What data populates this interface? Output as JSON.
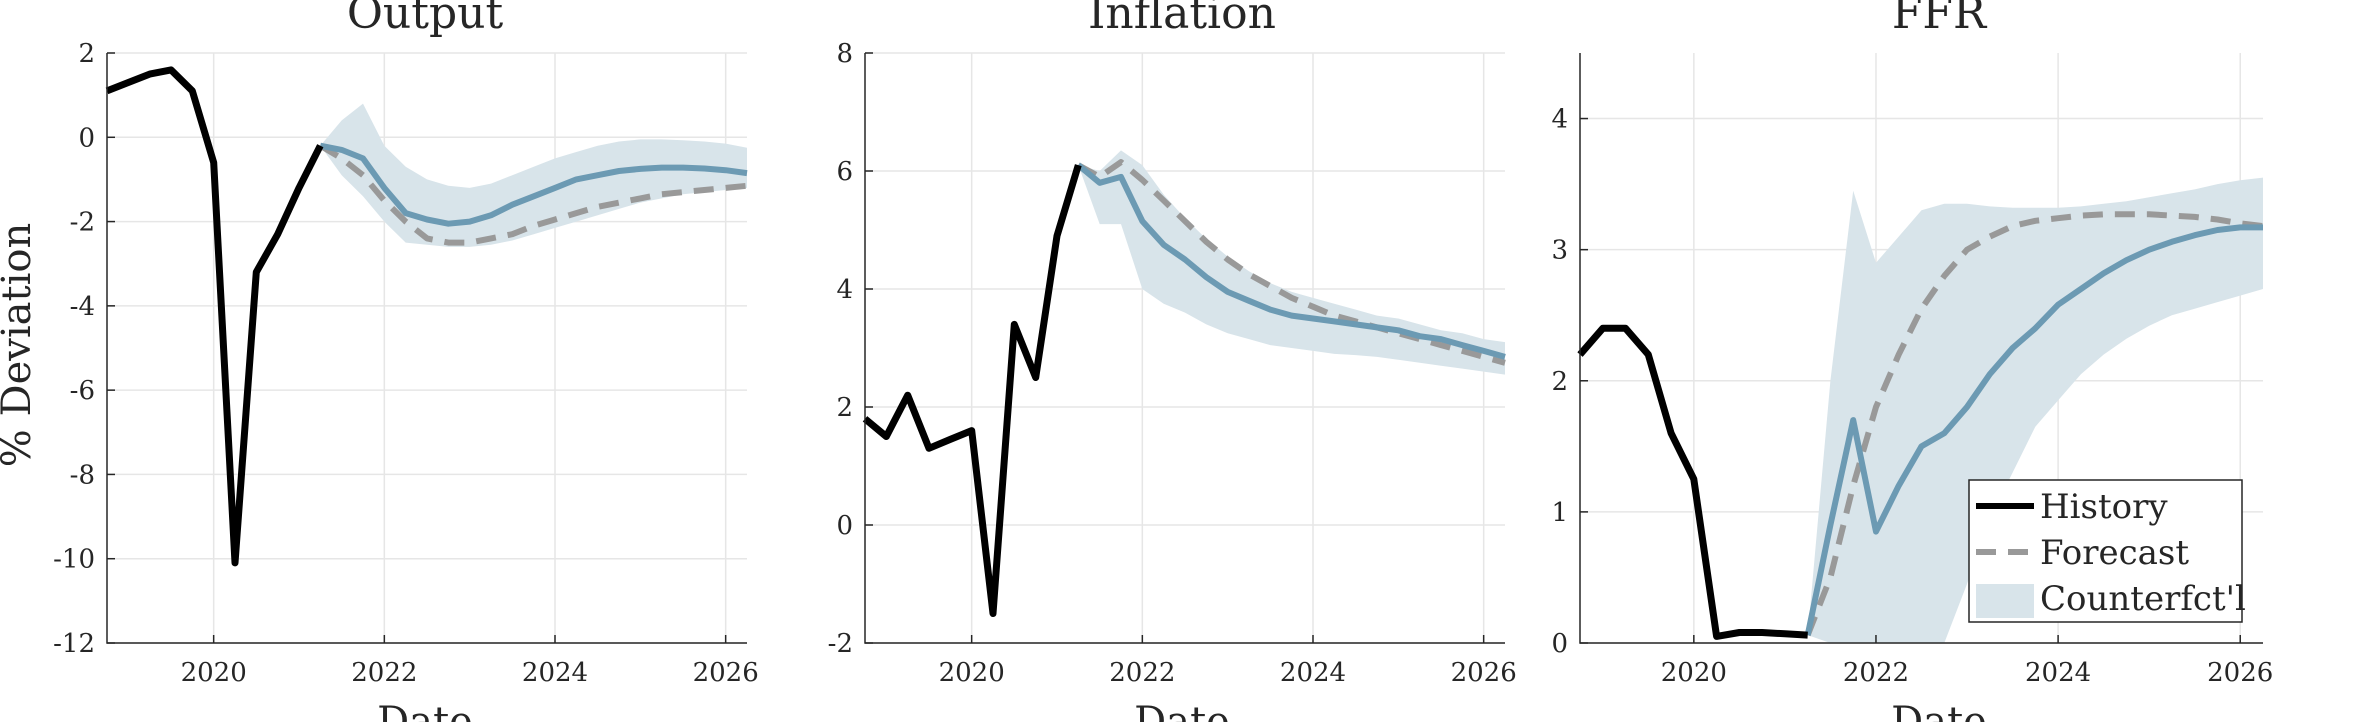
{
  "colors": {
    "history": "#000000",
    "forecast": "#999999",
    "counterfactual_line": "#6c9ab3",
    "counterfactual_band": "#d8e4ea"
  },
  "legend": {
    "history": "History",
    "forecast": "Forecast",
    "counterfactual": "Counterfct'l"
  },
  "chart_data": [
    {
      "type": "line",
      "title": "Output",
      "xlabel": "Date",
      "ylabel": "% Deviation",
      "xlim": [
        2018.75,
        2026.25
      ],
      "ylim": [
        -12,
        2
      ],
      "xticks": [
        2020,
        2022,
        2024,
        2026
      ],
      "yticks": [
        -12,
        -10,
        -8,
        -6,
        -4,
        -2,
        0,
        2
      ],
      "grid": true,
      "legend_position": "none",
      "history": {
        "x": [
          2018.75,
          2019.0,
          2019.25,
          2019.5,
          2019.75,
          2020.0,
          2020.25,
          2020.5,
          2020.75,
          2021.0,
          2021.25
        ],
        "y": [
          1.1,
          1.3,
          1.5,
          1.6,
          1.1,
          -0.6,
          -10.1,
          -3.2,
          -2.3,
          -1.2,
          -0.2
        ]
      },
      "forecast": {
        "x": [
          2021.25,
          2021.5,
          2021.75,
          2022.0,
          2022.25,
          2022.5,
          2022.75,
          2023.0,
          2023.25,
          2023.5,
          2023.75,
          2024.0,
          2024.25,
          2024.5,
          2024.75,
          2025.0,
          2025.25,
          2025.5,
          2025.75,
          2026.0,
          2026.25
        ],
        "y": [
          -0.2,
          -0.5,
          -0.9,
          -1.5,
          -2.0,
          -2.4,
          -2.5,
          -2.5,
          -2.4,
          -2.3,
          -2.1,
          -1.95,
          -1.8,
          -1.65,
          -1.55,
          -1.45,
          -1.35,
          -1.3,
          -1.25,
          -1.2,
          -1.15
        ]
      },
      "counterfactual": {
        "x": [
          2021.25,
          2021.5,
          2021.75,
          2022.0,
          2022.25,
          2022.5,
          2022.75,
          2023.0,
          2023.25,
          2023.5,
          2023.75,
          2024.0,
          2024.25,
          2024.5,
          2024.75,
          2025.0,
          2025.25,
          2025.5,
          2025.75,
          2026.0,
          2026.25
        ],
        "y": [
          -0.2,
          -0.3,
          -0.5,
          -1.2,
          -1.8,
          -1.95,
          -2.05,
          -2.0,
          -1.85,
          -1.6,
          -1.4,
          -1.2,
          -1.0,
          -0.9,
          -0.8,
          -0.75,
          -0.72,
          -0.72,
          -0.74,
          -0.78,
          -0.85
        ],
        "lower": [
          -0.2,
          -0.9,
          -1.4,
          -2.0,
          -2.5,
          -2.55,
          -2.6,
          -2.6,
          -2.55,
          -2.45,
          -2.3,
          -2.15,
          -2.0,
          -1.85,
          -1.7,
          -1.55,
          -1.45,
          -1.35,
          -1.3,
          -1.25,
          -1.2
        ],
        "upper": [
          -0.2,
          0.4,
          0.8,
          -0.2,
          -0.7,
          -1.0,
          -1.15,
          -1.2,
          -1.1,
          -0.9,
          -0.7,
          -0.5,
          -0.35,
          -0.2,
          -0.1,
          -0.05,
          -0.05,
          -0.07,
          -0.1,
          -0.15,
          -0.25
        ]
      }
    },
    {
      "type": "line",
      "title": "Inflation",
      "xlabel": "Date",
      "ylabel": "",
      "xlim": [
        2018.75,
        2026.25
      ],
      "ylim": [
        -2,
        8
      ],
      "xticks": [
        2020,
        2022,
        2024,
        2026
      ],
      "yticks": [
        -2,
        0,
        2,
        4,
        6,
        8
      ],
      "grid": true,
      "legend_position": "none",
      "history": {
        "x": [
          2018.75,
          2019.0,
          2019.25,
          2019.5,
          2019.75,
          2020.0,
          2020.25,
          2020.5,
          2020.75,
          2021.0,
          2021.25
        ],
        "y": [
          1.8,
          1.5,
          2.2,
          1.3,
          1.45,
          1.6,
          -1.5,
          3.4,
          2.5,
          4.9,
          6.1
        ]
      },
      "forecast": {
        "x": [
          2021.25,
          2021.5,
          2021.75,
          2022.0,
          2022.25,
          2022.5,
          2022.75,
          2023.0,
          2023.25,
          2023.5,
          2023.75,
          2024.0,
          2024.25,
          2024.5,
          2024.75,
          2025.0,
          2025.25,
          2025.5,
          2025.75,
          2026.0,
          2026.25
        ],
        "y": [
          6.1,
          5.9,
          6.15,
          5.85,
          5.5,
          5.15,
          4.8,
          4.5,
          4.25,
          4.05,
          3.85,
          3.7,
          3.55,
          3.45,
          3.35,
          3.25,
          3.15,
          3.05,
          2.95,
          2.85,
          2.75
        ]
      },
      "counterfactual": {
        "x": [
          2021.25,
          2021.5,
          2021.75,
          2022.0,
          2022.25,
          2022.5,
          2022.75,
          2023.0,
          2023.25,
          2023.5,
          2023.75,
          2024.0,
          2024.25,
          2024.5,
          2024.75,
          2025.0,
          2025.25,
          2025.5,
          2025.75,
          2026.0,
          2026.25
        ],
        "y": [
          6.1,
          5.8,
          5.9,
          5.15,
          4.75,
          4.5,
          4.2,
          3.95,
          3.8,
          3.65,
          3.55,
          3.5,
          3.45,
          3.4,
          3.35,
          3.3,
          3.2,
          3.15,
          3.05,
          2.95,
          2.85
        ],
        "lower": [
          6.1,
          5.1,
          5.1,
          4.0,
          3.75,
          3.6,
          3.4,
          3.25,
          3.15,
          3.05,
          3.0,
          2.95,
          2.9,
          2.88,
          2.85,
          2.8,
          2.75,
          2.7,
          2.65,
          2.6,
          2.55
        ],
        "upper": [
          6.1,
          6.0,
          6.35,
          6.1,
          5.6,
          5.2,
          4.85,
          4.55,
          4.3,
          4.1,
          3.95,
          3.85,
          3.75,
          3.65,
          3.55,
          3.5,
          3.4,
          3.3,
          3.25,
          3.15,
          3.1
        ]
      }
    },
    {
      "type": "line",
      "title": "FFR",
      "xlabel": "Date",
      "ylabel": "",
      "xlim": [
        2018.75,
        2026.25
      ],
      "ylim": [
        0,
        4.5
      ],
      "xticks": [
        2020,
        2022,
        2024,
        2026
      ],
      "yticks": [
        0,
        1,
        2,
        3,
        4
      ],
      "grid": true,
      "legend_position": "bottom-right",
      "history": {
        "x": [
          2018.75,
          2019.0,
          2019.25,
          2019.5,
          2019.75,
          2020.0,
          2020.25,
          2020.5,
          2020.75,
          2021.0,
          2021.25
        ],
        "y": [
          2.2,
          2.4,
          2.4,
          2.2,
          1.6,
          1.25,
          0.05,
          0.08,
          0.08,
          0.07,
          0.06
        ]
      },
      "forecast": {
        "x": [
          2021.25,
          2021.5,
          2021.75,
          2022.0,
          2022.25,
          2022.5,
          2022.75,
          2023.0,
          2023.25,
          2023.5,
          2023.75,
          2024.0,
          2024.25,
          2024.5,
          2024.75,
          2025.0,
          2025.25,
          2025.5,
          2025.75,
          2026.0,
          2026.25
        ],
        "y": [
          0.06,
          0.5,
          1.2,
          1.8,
          2.2,
          2.55,
          2.8,
          3.0,
          3.1,
          3.18,
          3.22,
          3.24,
          3.26,
          3.27,
          3.27,
          3.27,
          3.26,
          3.25,
          3.23,
          3.2,
          3.18
        ]
      },
      "counterfactual": {
        "x": [
          2021.25,
          2021.5,
          2021.75,
          2022.0,
          2022.25,
          2022.5,
          2022.75,
          2023.0,
          2023.25,
          2023.5,
          2023.75,
          2024.0,
          2024.25,
          2024.5,
          2024.75,
          2025.0,
          2025.25,
          2025.5,
          2025.75,
          2026.0,
          2026.25
        ],
        "y": [
          0.06,
          0.9,
          1.7,
          0.85,
          1.2,
          1.5,
          1.6,
          1.8,
          2.05,
          2.25,
          2.4,
          2.58,
          2.7,
          2.82,
          2.92,
          3.0,
          3.06,
          3.11,
          3.15,
          3.17,
          3.17
        ],
        "lower": [
          0.06,
          0.0,
          0.0,
          0.0,
          0.0,
          0.0,
          0.0,
          0.45,
          0.95,
          1.3,
          1.65,
          1.85,
          2.05,
          2.2,
          2.32,
          2.42,
          2.5,
          2.55,
          2.6,
          2.65,
          2.7
        ],
        "upper": [
          0.06,
          2.0,
          3.45,
          2.9,
          3.1,
          3.3,
          3.35,
          3.35,
          3.33,
          3.32,
          3.32,
          3.32,
          3.33,
          3.35,
          3.37,
          3.4,
          3.43,
          3.46,
          3.5,
          3.53,
          3.55
        ]
      }
    }
  ]
}
